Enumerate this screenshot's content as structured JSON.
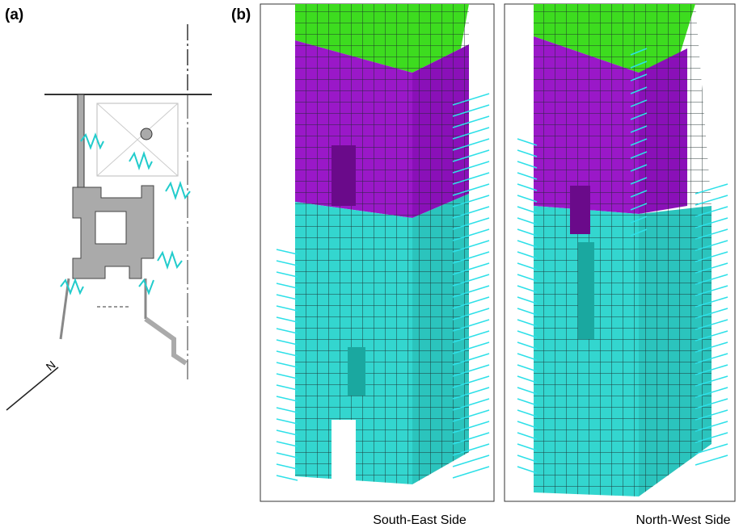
{
  "panels": {
    "a": {
      "label": "(a)",
      "north": "N"
    },
    "b": {
      "label": "(b)",
      "views": [
        {
          "caption": "South-East Side"
        },
        {
          "caption": "North-West Side"
        }
      ]
    }
  }
}
